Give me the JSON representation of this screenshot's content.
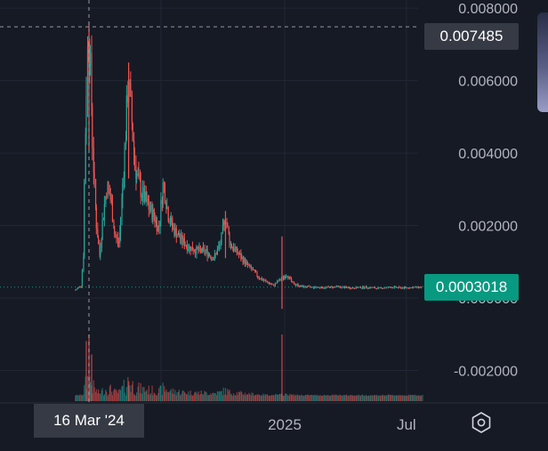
{
  "chart_data": {
    "type": "candlestick",
    "y_axis": {
      "ticks": [
        "0.008000",
        "0.006000",
        "0.004000",
        "0.002000",
        "0.000000",
        "-0.002000"
      ],
      "range": [
        -0.0027,
        0.0082
      ]
    },
    "x_axis": {
      "ticks": [
        "2025",
        "Jul"
      ]
    },
    "crosshair": {
      "price_label": "0.007485",
      "date_label": "16 Mar '24"
    },
    "last_price": {
      "label": "0.0003018",
      "value": 0.0003018
    },
    "price_path": [
      [
        "2024-02-25",
        0.00022
      ],
      [
        "2024-03-01",
        0.0003
      ],
      [
        "2024-03-05",
        0.00035
      ],
      [
        "2024-03-08",
        0.0012
      ],
      [
        "2024-03-10",
        0.0038
      ],
      [
        "2024-03-12",
        0.0055
      ],
      [
        "2024-03-14",
        0.0068
      ],
      [
        "2024-03-16",
        0.0075
      ],
      [
        "2024-03-19",
        0.006
      ],
      [
        "2024-03-22",
        0.004
      ],
      [
        "2024-03-27",
        0.0021
      ],
      [
        "2024-04-01",
        0.0012
      ],
      [
        "2024-04-06",
        0.0022
      ],
      [
        "2024-04-12",
        0.0031
      ],
      [
        "2024-04-18",
        0.0027
      ],
      [
        "2024-04-24",
        0.0017
      ],
      [
        "2024-04-30",
        0.0015
      ],
      [
        "2024-05-05",
        0.003
      ],
      [
        "2024-05-10",
        0.0046
      ],
      [
        "2024-05-14",
        0.0061
      ],
      [
        "2024-05-18",
        0.0051
      ],
      [
        "2024-05-24",
        0.0036
      ],
      [
        "2024-06-01",
        0.003
      ],
      [
        "2024-06-10",
        0.0026
      ],
      [
        "2024-06-20",
        0.0023
      ],
      [
        "2024-06-28",
        0.0019
      ],
      [
        "2024-07-05",
        0.0032
      ],
      [
        "2024-07-12",
        0.0023
      ],
      [
        "2024-07-20",
        0.0019
      ],
      [
        "2024-08-01",
        0.0016
      ],
      [
        "2024-08-12",
        0.0014
      ],
      [
        "2024-08-25",
        0.0013
      ],
      [
        "2024-09-05",
        0.0013
      ],
      [
        "2024-09-18",
        0.0011
      ],
      [
        "2024-09-28",
        0.0015
      ],
      [
        "2024-10-05",
        0.0023
      ],
      [
        "2024-10-12",
        0.0015
      ],
      [
        "2024-10-25",
        0.0012
      ],
      [
        "2024-11-05",
        0.00095
      ],
      [
        "2024-11-15",
        0.00075
      ],
      [
        "2024-11-25",
        0.00055
      ],
      [
        "2024-12-05",
        0.00045
      ],
      [
        "2024-12-15",
        0.00035
      ],
      [
        "2024-12-25",
        0.0005
      ],
      [
        "2025-01-05",
        0.00065
      ],
      [
        "2025-01-12",
        0.00042
      ],
      [
        "2025-01-25",
        0.00032
      ],
      [
        "2025-02-10",
        0.0003
      ],
      [
        "2025-03-01",
        0.00029
      ],
      [
        "2025-03-20",
        0.00031
      ],
      [
        "2025-04-10",
        0.00028
      ],
      [
        "2025-05-01",
        0.0003
      ],
      [
        "2025-05-20",
        0.00027
      ],
      [
        "2025-06-10",
        0.0003
      ],
      [
        "2025-06-25",
        0.00028
      ],
      [
        "2025-07-10",
        0.00029
      ],
      [
        "2025-07-25",
        0.0003018
      ]
    ],
    "wicks": [
      [
        "2024-03-16",
        0.0076,
        0.0041
      ],
      [
        "2024-05-14",
        0.0065,
        0.0033
      ],
      [
        "2024-10-05",
        0.0024,
        0.0011
      ],
      [
        "2024-12-28",
        0.0017,
        -0.0003
      ]
    ],
    "volume_spikes": [
      [
        "2024-03-12",
        0.9
      ],
      [
        "2024-03-16",
        1.0
      ],
      [
        "2024-03-20",
        0.7
      ],
      [
        "2024-05-14",
        0.3
      ],
      [
        "2024-12-28",
        1.0
      ]
    ],
    "colors": {
      "up": "#26a69a",
      "down": "#ef5350",
      "background": "#161a25",
      "grid": "#232734",
      "last_price_badge": "#089981",
      "crosshair_badge": "#363a45"
    }
  }
}
